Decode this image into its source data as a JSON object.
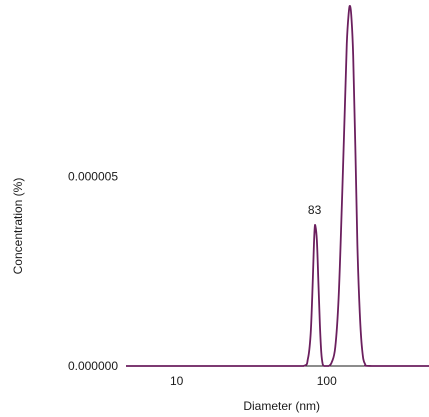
{
  "chart_data": {
    "type": "line",
    "title": "",
    "xlabel": "Diameter (nm)",
    "ylabel": "Concentration (%)",
    "x_scale": "log",
    "xlim": [
      4.6,
      480
    ],
    "ylim": [
      0.0,
      9.5e-06
    ],
    "x_ticks": [
      {
        "value": 10,
        "label": "10"
      },
      {
        "value": 100,
        "label": "100"
      }
    ],
    "y_ticks": [
      {
        "value": 0.0,
        "label": "0.000000"
      },
      {
        "value": 5e-06,
        "label": "0.000005"
      }
    ],
    "grid": false,
    "legend": "none",
    "series": [
      {
        "color": "#6b1f5e",
        "x": [
          4.6,
          50,
          70,
          75,
          78,
          80,
          82,
          83,
          84,
          86,
          88,
          90,
          92,
          94,
          96,
          99,
          103,
          108,
          114,
          120,
          126,
          132,
          136,
          140,
          143,
          146,
          150,
          155,
          160,
          166,
          172,
          180,
          200,
          480
        ],
        "y": [
          0.0,
          0.0,
          0.0,
          2e-07,
          8e-07,
          1.8e-06,
          3.1e-06,
          3.6e-06,
          3.7e-06,
          3.3e-06,
          2.2e-06,
          1.1e-06,
          3.5e-07,
          5e-08,
          0.0,
          0.0,
          0.0,
          1e-07,
          5e-07,
          1.8e-06,
          4.2e-06,
          6.8e-06,
          8.5e-06,
          9.3e-06,
          9.5e-06,
          9.2e-06,
          8.2e-06,
          5.8e-06,
          3.2e-06,
          1.4e-06,
          4.5e-07,
          5e-08,
          0.0,
          0.0
        ]
      }
    ],
    "annotations": [
      {
        "text": "83",
        "x": 83,
        "y": 3.7e-06
      }
    ]
  }
}
